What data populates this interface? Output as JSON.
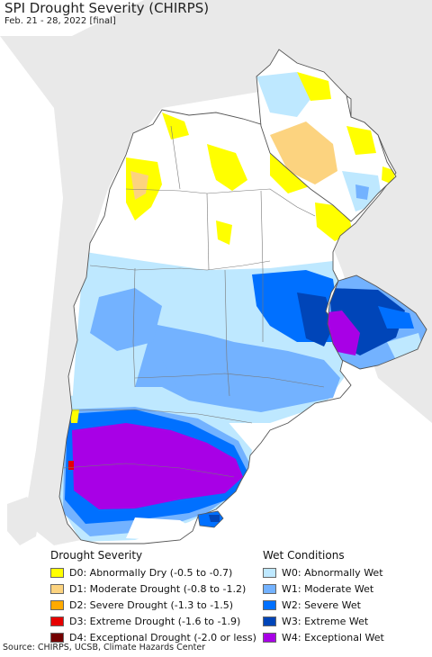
{
  "title": "SPI Drought Severity (CHIRPS)",
  "subtitle": "Feb. 21 - 28, 2022 [final]",
  "map": {
    "ocean_color": "#ffffff",
    "neighbor_land_color": "#e9e9e9",
    "country_base_color": "#ffffff",
    "border_color": "#555555"
  },
  "legend": {
    "drought": {
      "title": "Drought Severity",
      "items": [
        {
          "label": "D0: Abnormally Dry (-0.5 to -0.7)",
          "color": "#ffff00"
        },
        {
          "label": "D1: Moderate Drought (-0.8 to -1.2)",
          "color": "#fcd37f"
        },
        {
          "label": "D2: Severe Drought (-1.3 to -1.5)",
          "color": "#ffaa00"
        },
        {
          "label": "D3: Extreme Drought (-1.6 to -1.9)",
          "color": "#e60000"
        },
        {
          "label": "D4: Exceptional Drought (-2.0 or less)",
          "color": "#730000"
        }
      ]
    },
    "wet": {
      "title": "Wet Conditions",
      "items": [
        {
          "label": "W0: Abnormally Wet",
          "color": "#bee8ff"
        },
        {
          "label": "W1: Moderate Wet",
          "color": "#73b2ff"
        },
        {
          "label": "W2: Severe Wet",
          "color": "#0070ff"
        },
        {
          "label": "W3: Extreme Wet",
          "color": "#0045b8"
        },
        {
          "label": "W4: Exceptional Wet",
          "color": "#a800e6"
        }
      ]
    }
  },
  "source": "Source: CHIRPS, UCSB, Climate Hazards Center"
}
